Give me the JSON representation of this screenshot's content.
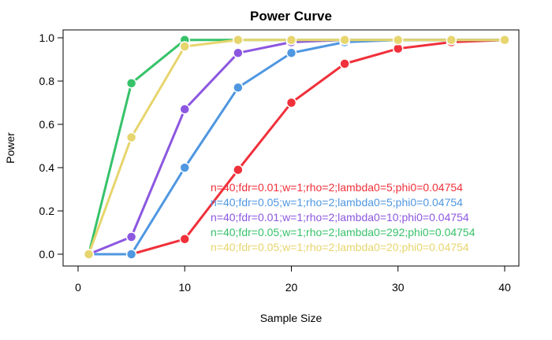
{
  "chart_data": {
    "type": "line",
    "title": "Power Curve",
    "xlabel": "Sample Size",
    "ylabel": "Power",
    "xlim": [
      0,
      40
    ],
    "ylim": [
      0,
      1
    ],
    "xticks": [
      0,
      10,
      20,
      30,
      40
    ],
    "yticks": [
      "0.0",
      "0.2",
      "0.4",
      "0.6",
      "0.8",
      "1.0"
    ],
    "grid": false,
    "legend_position": "bottom-right",
    "x": [
      1,
      5,
      10,
      15,
      20,
      25,
      30,
      35,
      40
    ],
    "series": [
      {
        "name": "n=40;fdr=0.01;w=1;rho=2;lambda0=5;phi0=0.04754",
        "color": "#f0303a",
        "values": [
          0.0,
          0.0,
          0.07,
          0.39,
          0.7,
          0.88,
          0.95,
          0.98,
          0.99
        ]
      },
      {
        "name": "n=40;fdr=0.05;w=1;rho=2;lambda0=5;phi0=0.04754",
        "color": "#4f97e1",
        "values": [
          0.0,
          0.0,
          0.4,
          0.77,
          0.93,
          0.98,
          0.99,
          0.99,
          0.99
        ]
      },
      {
        "name": "n=40;fdr=0.01;w=1;rho=2;lambda0=10;phi0=0.04754",
        "color": "#8c57e0",
        "values": [
          0.0,
          0.08,
          0.67,
          0.93,
          0.98,
          0.99,
          0.99,
          0.99,
          0.99
        ]
      },
      {
        "name": "n=40;fdr=0.05;w=1;rho=2;lambda0=292;phi0=0.04754",
        "color": "#37c26a",
        "values": [
          0.0,
          0.79,
          0.99,
          0.99,
          0.99,
          0.99,
          0.99,
          0.99,
          0.99
        ]
      },
      {
        "name": "n=40;fdr=0.05;w=1;rho=2;lambda0=20;phi0=0.04754",
        "color": "#e7d56e",
        "values": [
          0.0,
          0.54,
          0.96,
          0.99,
          0.99,
          0.99,
          0.99,
          0.99,
          0.99
        ]
      }
    ]
  }
}
